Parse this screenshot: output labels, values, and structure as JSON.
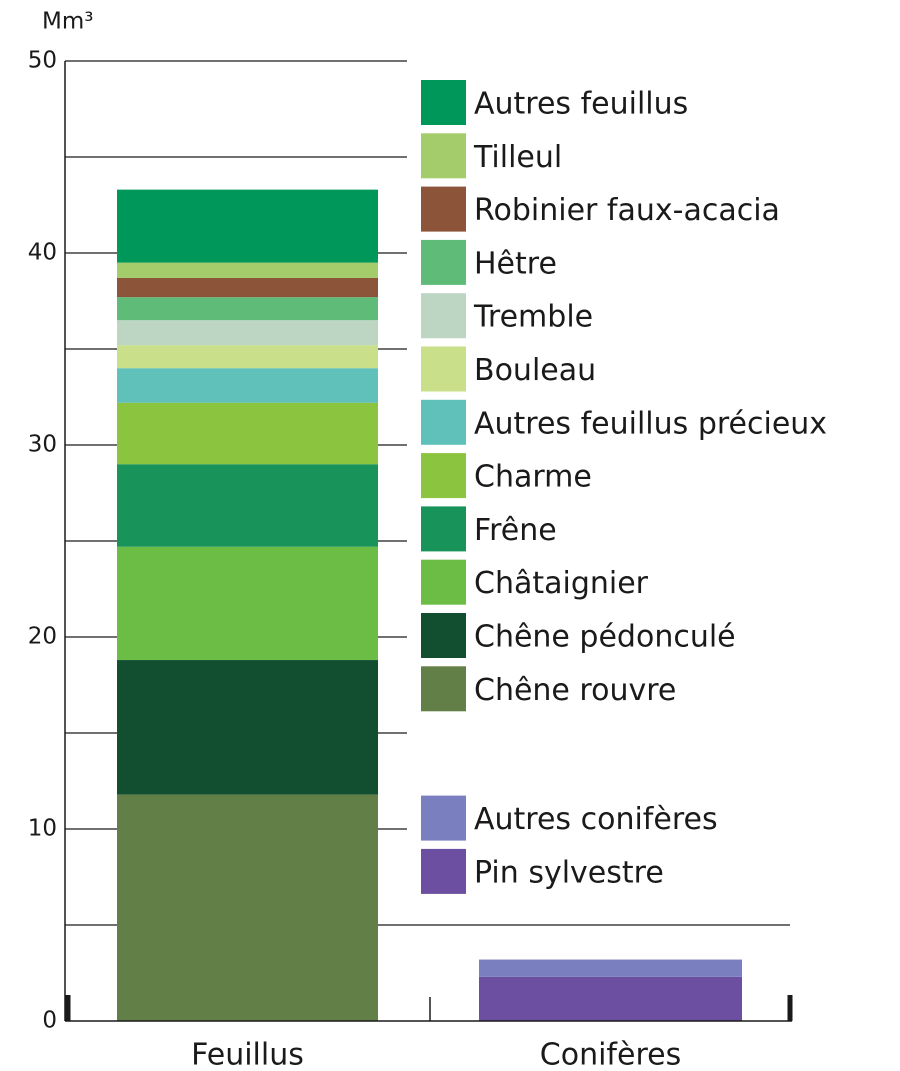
{
  "chart_data": {
    "type": "stacked_bar",
    "y_label": "Mm³",
    "categories": [
      "Feuillus",
      "Conifères"
    ],
    "series": [
      {
        "name": "Chêne rouvre",
        "color": "#627f48",
        "values": [
          11.8,
          null
        ]
      },
      {
        "name": "Chêne pédonculé",
        "color": "#124f30",
        "values": [
          7.0,
          null
        ]
      },
      {
        "name": "Châtaignier",
        "color": "#6cbd45",
        "values": [
          5.9,
          null
        ]
      },
      {
        "name": "Frêne",
        "color": "#18935a",
        "values": [
          4.3,
          null
        ]
      },
      {
        "name": "Charme",
        "color": "#8bc43f",
        "values": [
          3.2,
          null
        ]
      },
      {
        "name": "Autres feuillus précieux",
        "color": "#5fc1b9",
        "values": [
          1.8,
          null
        ]
      },
      {
        "name": "Bouleau",
        "color": "#c9df8a",
        "values": [
          1.2,
          null
        ]
      },
      {
        "name": "Tremble",
        "color": "#bdd5c3",
        "values": [
          1.3,
          null
        ]
      },
      {
        "name": "Hêtre",
        "color": "#5fbb78",
        "values": [
          1.2,
          null
        ]
      },
      {
        "name": "Robinier faux-acacia",
        "color": "#8c5539",
        "values": [
          1.0,
          null
        ]
      },
      {
        "name": "Tilleul",
        "color": "#a4cc6b",
        "values": [
          0.8,
          null
        ]
      },
      {
        "name": "Autres feuillus",
        "color": "#00985a",
        "values": [
          3.8,
          null
        ]
      },
      {
        "name": "Pin sylvestre",
        "color": "#6c4fa1",
        "values": [
          null,
          2.3
        ]
      },
      {
        "name": "Autres conifères",
        "color": "#7a7fc0",
        "values": [
          null,
          0.9
        ]
      }
    ],
    "ylim": [
      0,
      50
    ],
    "yticks": [
      0,
      10,
      20,
      30,
      40,
      50
    ],
    "minor_yticks": [
      5,
      15,
      25,
      35,
      45
    ],
    "grid": true
  }
}
